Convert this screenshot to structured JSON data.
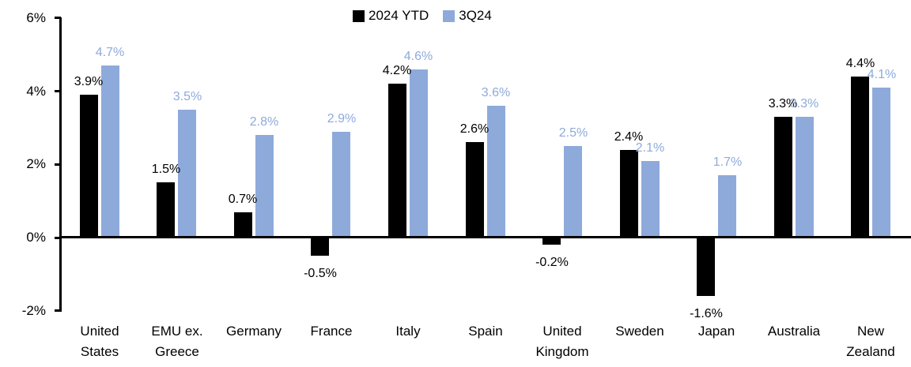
{
  "chart_data": {
    "type": "bar",
    "title": "",
    "xlabel": "",
    "ylabel": "",
    "ylim": [
      -2,
      6
    ],
    "grid": false,
    "legend_position": "top-center",
    "value_suffix": "%",
    "categories": [
      "United States",
      "EMU ex. Greece",
      "Germany",
      "France",
      "Italy",
      "Spain",
      "United Kingdom",
      "Sweden",
      "Japan",
      "Australia",
      "New Zealand"
    ],
    "category_label_lines": [
      [
        "United",
        "States"
      ],
      [
        "EMU ex.",
        "Greece"
      ],
      [
        "Germany"
      ],
      [
        "France"
      ],
      [
        "Italy"
      ],
      [
        "Spain"
      ],
      [
        "United",
        "Kingdom"
      ],
      [
        "Sweden"
      ],
      [
        "Japan"
      ],
      [
        "Australia"
      ],
      [
        "New",
        "Zealand"
      ]
    ],
    "series": [
      {
        "name": "2024 YTD",
        "color": "#000000",
        "values": [
          3.9,
          1.5,
          0.7,
          -0.5,
          4.2,
          2.6,
          -0.2,
          2.4,
          -1.6,
          3.3,
          4.4
        ],
        "labels": [
          "3.9%",
          "1.5%",
          "0.7%",
          "-0.5%",
          "4.2%",
          "2.6%",
          "-0.2%",
          "2.4%",
          "-1.6%",
          "3.3%",
          "4.4%"
        ]
      },
      {
        "name": "3Q24",
        "color": "#8EAADB",
        "values": [
          4.7,
          3.5,
          2.8,
          2.9,
          4.6,
          3.6,
          2.5,
          2.1,
          1.7,
          3.3,
          4.1
        ],
        "labels": [
          "4.7%",
          "3.5%",
          "2.8%",
          "2.9%",
          "4.6%",
          "3.6%",
          "2.5%",
          "2.1%",
          "1.7%",
          "3.3%",
          "4.1%"
        ]
      }
    ],
    "y_axis": {
      "ticks": [
        {
          "label": "6%",
          "value": 6
        },
        {
          "label": "4%",
          "value": 4
        },
        {
          "label": "2%",
          "value": 2
        },
        {
          "label": "0%",
          "value": 0
        },
        {
          "label": "-2%",
          "value": -2
        }
      ]
    }
  }
}
